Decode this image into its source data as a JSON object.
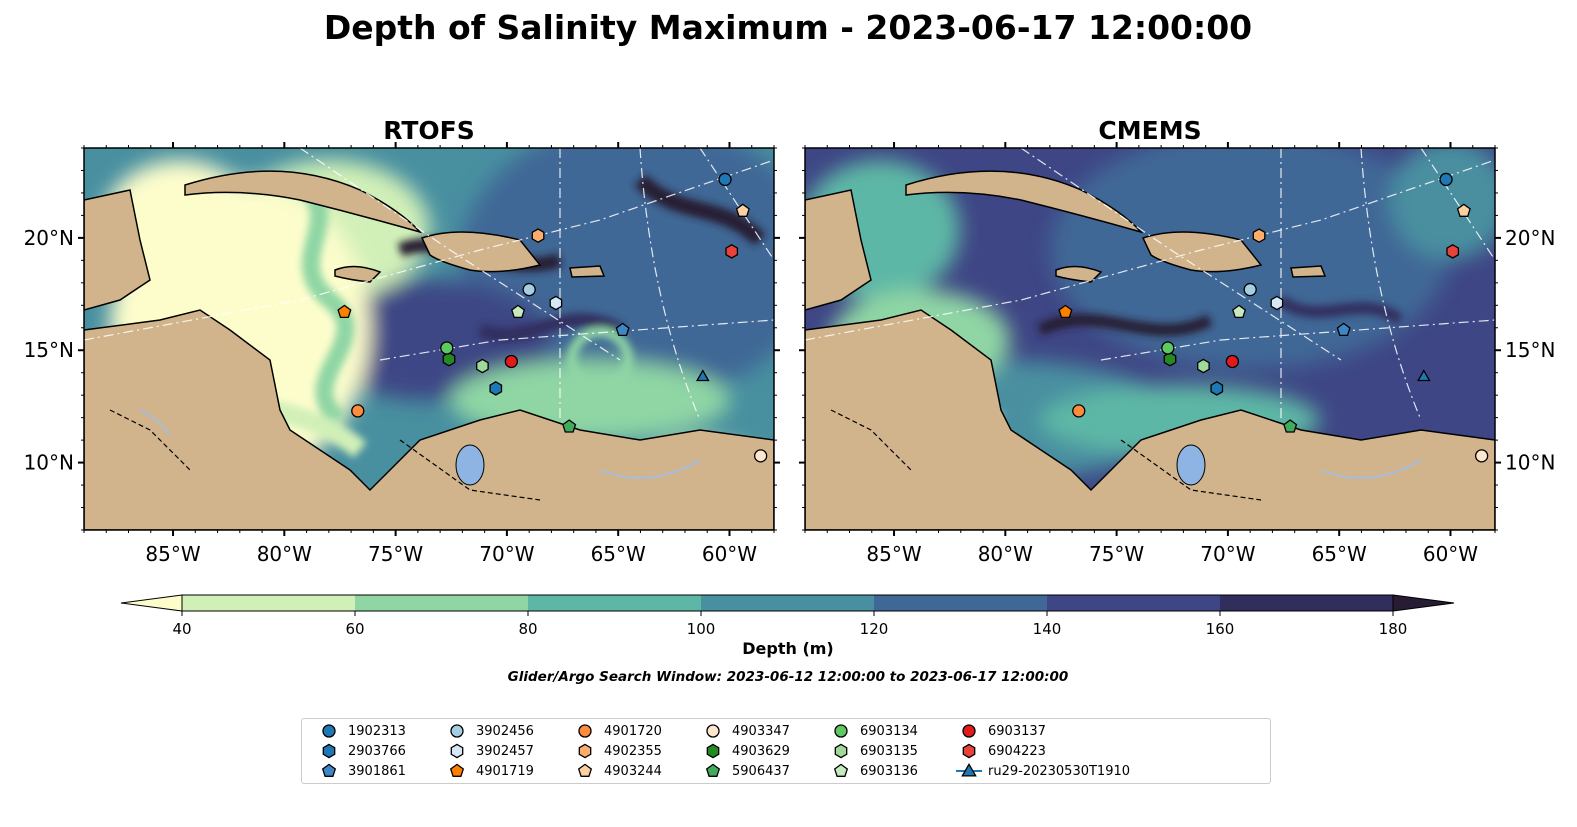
{
  "title": "Depth of Salinity Maximum - 2023-06-17 12:00:00",
  "chart_data": [
    {
      "type": "heatmap",
      "title": "RTOFS",
      "xticks": [
        "85°W",
        "80°W",
        "75°W",
        "70°W",
        "65°W",
        "60°W"
      ],
      "yticks": [
        "20°N",
        "15°N",
        "10°N"
      ],
      "xlim": [
        -89,
        -58
      ],
      "ylim": [
        7,
        24
      ]
    },
    {
      "type": "heatmap",
      "title": "CMEMS",
      "xticks": [
        "85°W",
        "80°W",
        "75°W",
        "70°W",
        "65°W",
        "60°W"
      ],
      "yticks": [
        "20°N",
        "15°N",
        "10°N"
      ],
      "xlim": [
        -89,
        -58
      ],
      "ylim": [
        7,
        24
      ]
    }
  ],
  "colorbar": {
    "label": "Depth (m)",
    "ticks": [
      "40",
      "60",
      "80",
      "100",
      "120",
      "140",
      "160",
      "180"
    ],
    "levels": [
      40,
      60,
      80,
      100,
      120,
      140,
      160,
      180
    ],
    "colors": [
      "#fdfdcc",
      "#d1f0b8",
      "#8fd6a4",
      "#5db7a6",
      "#488fa0",
      "#3f6896",
      "#3e4685",
      "#312e5e",
      "#271c33"
    ],
    "extend": "both"
  },
  "search_window": "Glider/Argo Search Window: 2023-06-12 12:00:00 to 2023-06-17 12:00:00",
  "colors": {
    "land": "#d2b48c",
    "water": "#a6bddb",
    "lake": "#8eb4e3"
  },
  "legend": [
    {
      "label": "1902313",
      "marker": "circle",
      "color": "#1f78b4",
      "lon": -60.2,
      "lat": 22.6
    },
    {
      "label": "2903766",
      "marker": "hexagon",
      "color": "#1f78b4",
      "lon": -70.5,
      "lat": 13.3
    },
    {
      "label": "3901861",
      "marker": "pentagon",
      "color": "#3f86c6",
      "lon": -64.8,
      "lat": 15.9
    },
    {
      "label": "3902456",
      "marker": "circle",
      "color": "#a6cee3",
      "lon": -69.0,
      "lat": 17.7
    },
    {
      "label": "3902457",
      "marker": "hexagon",
      "color": "#d6e8f5",
      "lon": -67.8,
      "lat": 17.1
    },
    {
      "label": "4901719",
      "marker": "pentagon",
      "color": "#ff7f00",
      "lon": -77.3,
      "lat": 16.7
    },
    {
      "label": "4901720",
      "marker": "circle",
      "color": "#fd8d3c",
      "lon": -76.7,
      "lat": 12.3
    },
    {
      "label": "4902355",
      "marker": "hexagon",
      "color": "#fdae6b",
      "lon": -68.6,
      "lat": 20.1
    },
    {
      "label": "4903244",
      "marker": "pentagon",
      "color": "#fdd0a2",
      "lon": -59.4,
      "lat": 21.2
    },
    {
      "label": "4903347",
      "marker": "circle",
      "color": "#fee6ce",
      "lon": -58.6,
      "lat": 10.3
    },
    {
      "label": "4903629",
      "marker": "hexagon",
      "color": "#238b22",
      "lon": -72.6,
      "lat": 14.6
    },
    {
      "label": "5906437",
      "marker": "pentagon",
      "color": "#41ab5d",
      "lon": -67.2,
      "lat": 11.6
    },
    {
      "label": "6903134",
      "marker": "circle",
      "color": "#5ec962",
      "lon": -72.7,
      "lat": 15.1
    },
    {
      "label": "6903135",
      "marker": "hexagon",
      "color": "#a1d99b",
      "lon": -71.1,
      "lat": 14.3
    },
    {
      "label": "6903136",
      "marker": "pentagon",
      "color": "#c7e9c0",
      "lon": -69.5,
      "lat": 16.7
    },
    {
      "label": "6903137",
      "marker": "circle",
      "color": "#e31a1c",
      "lon": -69.8,
      "lat": 14.5
    },
    {
      "label": "6904223",
      "marker": "hexagon",
      "color": "#e8423a",
      "lon": -59.9,
      "lat": 19.4
    },
    {
      "label": "ru29-20230530T1910",
      "marker": "triangle",
      "color": "#1f78b4",
      "lon": -61.2,
      "lat": 13.8
    }
  ]
}
